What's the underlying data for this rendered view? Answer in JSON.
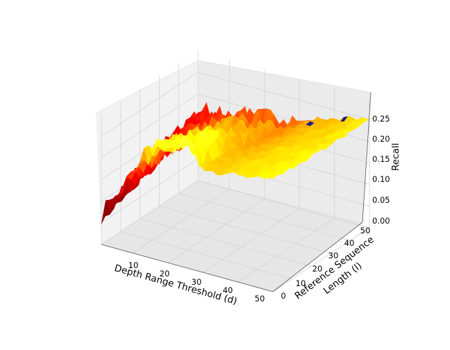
{
  "chart_data": {
    "type": "surface3d",
    "title": "",
    "xlabel": "Depth Range Threshold (d)",
    "ylabel_line1": "Reference Sequence",
    "ylabel_line2": "Length (l)",
    "zlabel": "Recall",
    "x_ticks": [
      "10",
      "20",
      "30",
      "40",
      "50"
    ],
    "y_ticks": [
      "0",
      "10",
      "20",
      "30",
      "40",
      "50"
    ],
    "z_ticks": [
      "0.00",
      "0.05",
      "0.10",
      "0.15",
      "0.20",
      "0.25"
    ],
    "xlim": [
      1,
      50
    ],
    "ylim": [
      0,
      50
    ],
    "zlim": [
      0,
      0.3
    ],
    "colormap": "hot (red to yellow), blue spots at holes",
    "colors": {
      "pane": "#f2f2f2",
      "grid": "#d2d2d2",
      "axis": "#333333"
    },
    "surface_profile_at_max_l": {
      "d": [
        1,
        5,
        10,
        15,
        20,
        25,
        30,
        35,
        40,
        45,
        50
      ],
      "recall": [
        0.16,
        0.17,
        0.18,
        0.18,
        0.19,
        0.19,
        0.2,
        0.22,
        0.23,
        0.24,
        0.25
      ]
    },
    "surface_profile_at_min_l": {
      "d": [
        1,
        5,
        10,
        15,
        20,
        25,
        30,
        35,
        40,
        45,
        50
      ],
      "recall": [
        0.07,
        0.12,
        0.19,
        0.25,
        0.27,
        0.28,
        0.24,
        0.24,
        0.25,
        0.25,
        0.26
      ]
    }
  }
}
